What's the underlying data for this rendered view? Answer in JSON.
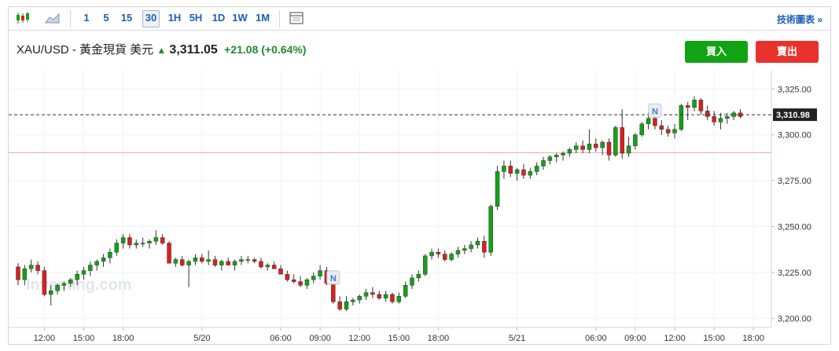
{
  "toolbar": {
    "chart_type_icon": "candlestick-icon",
    "area_icon": "area-chart-icon",
    "intervals": [
      "1",
      "5",
      "15",
      "30",
      "1H",
      "5H",
      "1D",
      "1W",
      "1M"
    ],
    "active_interval": "30",
    "settings_icon": "chart-settings-icon",
    "tech_chart": "技術圖表 »"
  },
  "header": {
    "symbol": "XAU/USD - 黃金現貨 美元",
    "price": "3,311.05",
    "change": "+21.08 (+0.64%)",
    "buy": "買入",
    "sell": "賣出"
  },
  "watermark": "Investing.com",
  "colors": {
    "up": "#12a314",
    "down": "#d9211e",
    "price_line": "#333333",
    "ref_line": "#f4a5a5"
  },
  "chart_data": {
    "type": "candlestick",
    "title": "",
    "xlabel": "",
    "ylabel": "",
    "ylim": [
      3195,
      3332
    ],
    "grid": true,
    "yticks": [
      {
        "v": 3325,
        "label": "3,325.00"
      },
      {
        "v": 3300,
        "label": "3,300.00"
      },
      {
        "v": 3275,
        "label": "3,275.00"
      },
      {
        "v": 3250,
        "label": "3,250.00"
      },
      {
        "v": 3225,
        "label": "3,225.00"
      },
      {
        "v": 3200,
        "label": "3,200.00"
      }
    ],
    "xticks": [
      {
        "i": 4,
        "label": "12:00"
      },
      {
        "i": 10,
        "label": "15:00"
      },
      {
        "i": 16,
        "label": "18:00"
      },
      {
        "i": 28,
        "label": "5/20"
      },
      {
        "i": 40,
        "label": "06:00"
      },
      {
        "i": 46,
        "label": "09:00"
      },
      {
        "i": 52,
        "label": "12:00"
      },
      {
        "i": 58,
        "label": "15:00"
      },
      {
        "i": 64,
        "label": "18:00"
      },
      {
        "i": 76,
        "label": "5/21"
      },
      {
        "i": 88,
        "label": "06:00"
      },
      {
        "i": 94,
        "label": "09:00"
      },
      {
        "i": 100,
        "label": "12:00"
      },
      {
        "i": 106,
        "label": "15:00"
      },
      {
        "i": 112,
        "label": "18:00"
      }
    ],
    "current_price": 3310.98,
    "current_price_label": "3,310.98",
    "reference_line": 3290.3,
    "news_markers": [
      {
        "i": 48,
        "price": 3222,
        "label": "N"
      },
      {
        "i": 97,
        "price": 3313,
        "label": "N"
      }
    ],
    "candles": [
      [
        3228,
        3230,
        3218,
        3221
      ],
      [
        3221,
        3229,
        3218,
        3227
      ],
      [
        3227,
        3232,
        3225,
        3229
      ],
      [
        3229,
        3231,
        3224,
        3226
      ],
      [
        3226,
        3228,
        3212,
        3213
      ],
      [
        3213,
        3218,
        3207,
        3215
      ],
      [
        3215,
        3219,
        3213,
        3218
      ],
      [
        3218,
        3220,
        3215,
        3219
      ],
      [
        3219,
        3222,
        3217,
        3221
      ],
      [
        3221,
        3226,
        3218,
        3224
      ],
      [
        3224,
        3228,
        3221,
        3226
      ],
      [
        3226,
        3231,
        3223,
        3229
      ],
      [
        3229,
        3232,
        3226,
        3231
      ],
      [
        3231,
        3235,
        3228,
        3233
      ],
      [
        3233,
        3238,
        3230,
        3236
      ],
      [
        3236,
        3243,
        3234,
        3241
      ],
      [
        3241,
        3246,
        3238,
        3244
      ],
      [
        3244,
        3246,
        3238,
        3240
      ],
      [
        3240,
        3243,
        3238,
        3241
      ],
      [
        3241,
        3244,
        3239,
        3241
      ],
      [
        3241,
        3243,
        3238,
        3242
      ],
      [
        3242,
        3248,
        3240,
        3244
      ],
      [
        3244,
        3246,
        3240,
        3241
      ],
      [
        3241,
        3242,
        3230,
        3230
      ],
      [
        3230,
        3233,
        3228,
        3232
      ],
      [
        3232,
        3234,
        3228,
        3229
      ],
      [
        3229,
        3232,
        3217,
        3231
      ],
      [
        3231,
        3235,
        3229,
        3233
      ],
      [
        3233,
        3235,
        3230,
        3231
      ],
      [
        3231,
        3237,
        3229,
        3232
      ],
      [
        3232,
        3234,
        3228,
        3229
      ],
      [
        3229,
        3232,
        3226,
        3231
      ],
      [
        3231,
        3233,
        3229,
        3229
      ],
      [
        3229,
        3232,
        3226,
        3231
      ],
      [
        3231,
        3234,
        3229,
        3232
      ],
      [
        3232,
        3234,
        3230,
        3232
      ],
      [
        3232,
        3233,
        3230,
        3231
      ],
      [
        3231,
        3233,
        3227,
        3228
      ],
      [
        3228,
        3230,
        3226,
        3229
      ],
      [
        3229,
        3231,
        3227,
        3227
      ],
      [
        3227,
        3229,
        3224,
        3224
      ],
      [
        3224,
        3226,
        3220,
        3221
      ],
      [
        3221,
        3224,
        3219,
        3220
      ],
      [
        3220,
        3223,
        3217,
        3218
      ],
      [
        3218,
        3222,
        3216,
        3221
      ],
      [
        3221,
        3225,
        3219,
        3223
      ],
      [
        3223,
        3229,
        3221,
        3226
      ],
      [
        3226,
        3228,
        3218,
        3219
      ],
      [
        3219,
        3221,
        3208,
        3209
      ],
      [
        3209,
        3212,
        3204,
        3205
      ],
      [
        3205,
        3212,
        3204,
        3209
      ],
      [
        3209,
        3211,
        3207,
        3210
      ],
      [
        3210,
        3213,
        3208,
        3212
      ],
      [
        3212,
        3216,
        3210,
        3214
      ],
      [
        3214,
        3217,
        3211,
        3213
      ],
      [
        3213,
        3215,
        3210,
        3211
      ],
      [
        3211,
        3215,
        3209,
        3213
      ],
      [
        3213,
        3214,
        3208,
        3209
      ],
      [
        3209,
        3214,
        3208,
        3212
      ],
      [
        3212,
        3220,
        3211,
        3218
      ],
      [
        3218,
        3224,
        3216,
        3222
      ],
      [
        3222,
        3226,
        3220,
        3224
      ],
      [
        3224,
        3235,
        3223,
        3234
      ],
      [
        3234,
        3238,
        3232,
        3236
      ],
      [
        3236,
        3238,
        3233,
        3235
      ],
      [
        3235,
        3237,
        3231,
        3232
      ],
      [
        3232,
        3236,
        3231,
        3235
      ],
      [
        3235,
        3239,
        3233,
        3237
      ],
      [
        3237,
        3240,
        3235,
        3238
      ],
      [
        3238,
        3242,
        3236,
        3240
      ],
      [
        3240,
        3244,
        3238,
        3242
      ],
      [
        3242,
        3245,
        3233,
        3236
      ],
      [
        3236,
        3262,
        3234,
        3261
      ],
      [
        3261,
        3283,
        3259,
        3280
      ],
      [
        3280,
        3286,
        3276,
        3283
      ],
      [
        3283,
        3286,
        3277,
        3279
      ],
      [
        3279,
        3282,
        3275,
        3281
      ],
      [
        3281,
        3284,
        3276,
        3278
      ],
      [
        3278,
        3282,
        3276,
        3280
      ],
      [
        3280,
        3285,
        3278,
        3283
      ],
      [
        3283,
        3288,
        3281,
        3286
      ],
      [
        3286,
        3289,
        3284,
        3288
      ],
      [
        3288,
        3290,
        3285,
        3289
      ],
      [
        3289,
        3291,
        3286,
        3290
      ],
      [
        3290,
        3293,
        3288,
        3292
      ],
      [
        3292,
        3296,
        3290,
        3294
      ],
      [
        3294,
        3297,
        3290,
        3292
      ],
      [
        3292,
        3303,
        3290,
        3295
      ],
      [
        3295,
        3298,
        3291,
        3293
      ],
      [
        3293,
        3297,
        3289,
        3296
      ],
      [
        3296,
        3298,
        3286,
        3289
      ],
      [
        3289,
        3305,
        3288,
        3304
      ],
      [
        3304,
        3314,
        3287,
        3290
      ],
      [
        3290,
        3299,
        3288,
        3294
      ],
      [
        3294,
        3301,
        3292,
        3300
      ],
      [
        3300,
        3307,
        3299,
        3306
      ],
      [
        3306,
        3312,
        3303,
        3309
      ],
      [
        3309,
        3311,
        3303,
        3305
      ],
      [
        3305,
        3308,
        3300,
        3303
      ],
      [
        3303,
        3305,
        3299,
        3301
      ],
      [
        3301,
        3306,
        3298,
        3303
      ],
      [
        3303,
        3317,
        3302,
        3316
      ],
      [
        3316,
        3318,
        3308,
        3315
      ],
      [
        3315,
        3321,
        3313,
        3319
      ],
      [
        3319,
        3320,
        3311,
        3313
      ],
      [
        3313,
        3316,
        3308,
        3310
      ],
      [
        3310,
        3313,
        3305,
        3307
      ],
      [
        3307,
        3312,
        3303,
        3309
      ],
      [
        3309,
        3312,
        3306,
        3310
      ],
      [
        3310,
        3313,
        3308,
        3312
      ],
      [
        3312,
        3314,
        3309,
        3310
      ]
    ]
  }
}
